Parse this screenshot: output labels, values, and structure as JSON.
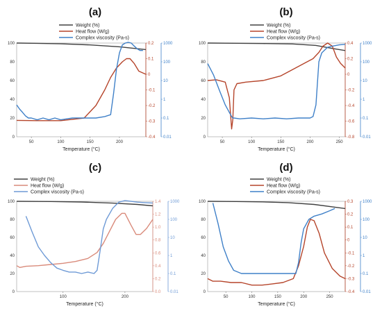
{
  "figure": {
    "colors": {
      "weight": "#404040",
      "heat": "#b5442a",
      "visc": "#3f80c8",
      "heat_light": "#d98a7a",
      "visc_light": "#6e9ad6"
    },
    "legend": {
      "weight": "Weight (%)",
      "heat": "Heat flow (W/g)",
      "visc": "Complex viscosity (Pa-s)"
    }
  },
  "chart_data": [
    {
      "panel_label": "(a)",
      "type": "line",
      "xlabel": "Temperature (°C)",
      "xlim": [
        25,
        245
      ],
      "xticks": [
        50,
        100,
        150,
        200
      ],
      "ylim_weight": [
        0,
        100
      ],
      "weight_ticks": [
        0,
        20,
        40,
        60,
        80,
        100
      ],
      "ylim_heat": [
        -0.4,
        0.2
      ],
      "heat_ticks": [
        "-0.4",
        "-0.3",
        "-0.2",
        "-0.1",
        "0",
        "0.1",
        "0.2"
      ],
      "visc_ticks": [
        "0.01",
        "0.1",
        "1",
        "10",
        "100",
        "1000"
      ],
      "legend": [
        "Weight (%)",
        "Heat flow (W/g)",
        "Complex viscosity (Pa-s)"
      ],
      "series": [
        {
          "name": "Weight (%)",
          "axis": "left",
          "x": [
            25,
            60,
            100,
            150,
            200,
            245
          ],
          "y": [
            100,
            99.7,
            99.2,
            98,
            96,
            93
          ]
        },
        {
          "name": "Heat flow (W/g)",
          "axis": "right",
          "x": [
            25,
            60,
            100,
            140,
            160,
            175,
            185,
            195,
            205,
            212,
            218,
            225,
            233,
            245
          ],
          "y": [
            -0.295,
            -0.297,
            -0.297,
            -0.28,
            -0.2,
            -0.1,
            -0.02,
            0.04,
            0.08,
            0.1,
            0.1,
            0.07,
            0.02,
            0.0
          ]
        },
        {
          "name": "Complex viscosity (Pa-s)",
          "axis": "right-log",
          "x": [
            25,
            30,
            35,
            40,
            45,
            50,
            60,
            70,
            80,
            90,
            100,
            120,
            140,
            160,
            175,
            185,
            190,
            195,
            200,
            205,
            210,
            215,
            220,
            225,
            230,
            235,
            240
          ],
          "y": [
            0.5,
            0.3,
            0.2,
            0.13,
            0.1,
            0.1,
            0.08,
            0.1,
            0.08,
            0.1,
            0.08,
            0.1,
            0.1,
            0.1,
            0.12,
            0.15,
            2,
            40,
            300,
            800,
            1000,
            1100,
            1000,
            700,
            500,
            400,
            400
          ]
        }
      ]
    },
    {
      "panel_label": "(b)",
      "type": "line",
      "xlabel": "Temperature (°C)",
      "xlim": [
        25,
        260
      ],
      "xticks": [
        50,
        100,
        150,
        200,
        250
      ],
      "ylim_weight": [
        0,
        100
      ],
      "weight_ticks": [
        0,
        20,
        40,
        60,
        80,
        100
      ],
      "ylim_heat": [
        -0.8,
        0.4
      ],
      "heat_ticks": [
        "-0.8",
        "-0.6",
        "-0.4",
        "-0.2",
        "0",
        "0.2",
        "0.4"
      ],
      "visc_ticks": [
        "0.01",
        "0.1",
        "1",
        "10",
        "100",
        "1000"
      ],
      "legend": [
        "Weight (%)",
        "Heat flow (W/g)",
        "Complex viscosity (Pa-s)"
      ],
      "series": [
        {
          "name": "Weight (%)",
          "axis": "left",
          "x": [
            25,
            70,
            120,
            170,
            210,
            240,
            260
          ],
          "y": [
            100,
            99.8,
            99.5,
            99,
            97.5,
            94,
            92
          ]
        },
        {
          "name": "Heat flow (W/g)",
          "axis": "right",
          "x": [
            25,
            40,
            55,
            62,
            66,
            68,
            70,
            75,
            90,
            120,
            150,
            170,
            190,
            205,
            215,
            222,
            230,
            238,
            245,
            252,
            260
          ],
          "y": [
            -0.08,
            -0.07,
            -0.1,
            -0.3,
            -0.7,
            -0.58,
            -0.2,
            -0.12,
            -0.1,
            -0.08,
            -0.02,
            0.06,
            0.14,
            0.2,
            0.28,
            0.36,
            0.4,
            0.36,
            0.22,
            0.14,
            0.08
          ]
        },
        {
          "name": "Complex viscosity (Pa-s)",
          "axis": "right-log",
          "x": [
            25,
            35,
            45,
            55,
            62,
            66,
            68,
            70,
            80,
            100,
            120,
            140,
            160,
            180,
            200,
            205,
            210,
            215,
            220,
            230,
            240,
            250,
            260
          ],
          "y": [
            80,
            20,
            3,
            0.5,
            0.2,
            0.12,
            0.1,
            0.1,
            0.09,
            0.1,
            0.09,
            0.1,
            0.09,
            0.1,
            0.1,
            0.12,
            0.5,
            100,
            300,
            600,
            700,
            800,
            850
          ]
        }
      ]
    },
    {
      "panel_label": "(c)",
      "type": "line",
      "xlabel": "Temperature (°C)",
      "xlim": [
        25,
        245
      ],
      "xticks": [
        100,
        200
      ],
      "ylim_weight": [
        0,
        100
      ],
      "weight_ticks": [
        0,
        20,
        40,
        60,
        80,
        100
      ],
      "ylim_heat": [
        -0.1,
        1.4
      ],
      "heat_ticks": [
        "0.0",
        "0.2",
        "0.4",
        "0.6",
        "0.8",
        "1.0",
        "1.2",
        "1.4"
      ],
      "visc_ticks": [
        "0.01",
        "0.1",
        "1",
        "10",
        "100",
        "1000"
      ],
      "legend": [
        "Weight (%)",
        "Heat flow (W/g)",
        "Complex viscosity (Pa-s)"
      ],
      "series": [
        {
          "name": "Weight (%)",
          "axis": "left",
          "x": [
            25,
            80,
            130,
            180,
            220,
            245
          ],
          "y": [
            100,
            99.8,
            99.2,
            98,
            96.5,
            95
          ]
        },
        {
          "name": "Heat flow (W/g)",
          "axis": "right",
          "x": [
            25,
            30,
            40,
            60,
            80,
            100,
            120,
            140,
            155,
            165,
            175,
            185,
            195,
            200,
            210,
            218,
            225,
            235,
            245
          ],
          "y": [
            0.33,
            0.3,
            0.32,
            0.33,
            0.35,
            0.37,
            0.4,
            0.45,
            0.55,
            0.7,
            0.9,
            1.1,
            1.2,
            1.2,
            1.0,
            0.85,
            0.85,
            0.95,
            1.1
          ]
        },
        {
          "name": "Complex viscosity (Pa-s)",
          "axis": "right-log",
          "x": [
            40,
            50,
            60,
            70,
            80,
            90,
            100,
            110,
            120,
            130,
            140,
            150,
            155,
            160,
            165,
            170,
            180,
            190,
            200,
            210,
            220,
            230,
            245
          ],
          "y": [
            150,
            20,
            3,
            1,
            0.4,
            0.2,
            0.15,
            0.12,
            0.12,
            0.1,
            0.12,
            0.1,
            0.15,
            2,
            30,
            100,
            400,
            900,
            1100,
            1000,
            900,
            850,
            800
          ]
        }
      ]
    },
    {
      "panel_label": "(d)",
      "type": "line",
      "xlabel": "Temperature (°C)",
      "xlim": [
        15,
        280
      ],
      "xticks": [
        50,
        100,
        150,
        200,
        250
      ],
      "ylim_weight": [
        0,
        100
      ],
      "weight_ticks": [
        0,
        20,
        40,
        60,
        80,
        100
      ],
      "ylim_heat": [
        -0.4,
        0.3
      ],
      "heat_ticks": [
        "-0.4",
        "-0.3",
        "-0.2",
        "-0.1",
        "0",
        "0.1",
        "0.2",
        "0.3"
      ],
      "visc_ticks": [
        "0.01",
        "0.1",
        "1",
        "10",
        "100",
        "1000"
      ],
      "legend": [
        "Weight (%)",
        "Heat flow (W/g)",
        "Complex viscosity (Pa-s)"
      ],
      "series": [
        {
          "name": "Weight (%)",
          "axis": "left",
          "x": [
            15,
            70,
            120,
            170,
            220,
            260,
            280
          ],
          "y": [
            100,
            99.8,
            99.4,
            98.5,
            96.5,
            93.5,
            92
          ]
        },
        {
          "name": "Heat flow (W/g)",
          "axis": "right",
          "x": [
            15,
            25,
            40,
            60,
            80,
            100,
            120,
            140,
            160,
            180,
            190,
            200,
            207,
            213,
            220,
            230,
            240,
            255,
            270,
            280
          ],
          "y": [
            -0.3,
            -0.32,
            -0.32,
            -0.33,
            -0.33,
            -0.35,
            -0.35,
            -0.34,
            -0.33,
            -0.3,
            -0.2,
            -0.05,
            0.1,
            0.16,
            0.15,
            0.05,
            -0.1,
            -0.22,
            -0.28,
            -0.3
          ]
        },
        {
          "name": "Complex viscosity (Pa-s)",
          "axis": "right-log",
          "x": [
            25,
            35,
            45,
            55,
            65,
            80,
            100,
            120,
            140,
            160,
            175,
            185,
            190,
            195,
            200,
            210,
            220,
            235,
            250,
            260
          ],
          "y": [
            800,
            60,
            3,
            0.5,
            0.15,
            0.1,
            0.1,
            0.1,
            0.1,
            0.1,
            0.1,
            0.1,
            0.4,
            5,
            30,
            100,
            150,
            200,
            300,
            400
          ]
        }
      ]
    }
  ]
}
